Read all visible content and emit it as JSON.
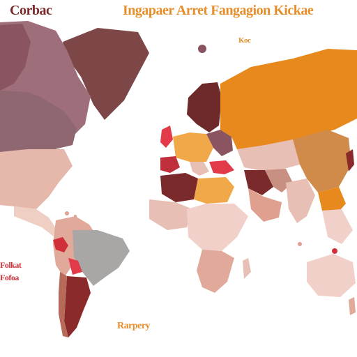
{
  "labels": {
    "top_left": "Corbac",
    "top_center": "Ingapaer Arret Fangagion Kickae",
    "near_russia": "Koc",
    "left_mid_1": "Folkat",
    "left_mid_2": "Fofoa",
    "bottom": "Rarpery"
  },
  "colors": {
    "ocean": "#ffffff",
    "dark_maroon": "#6e2a2a",
    "deep_red": "#8b2a2a",
    "crimson": "#c0303c",
    "bright_red": "#e23a48",
    "plum": "#8a5560",
    "mauve": "#a07080",
    "light_pink": "#e8bfb5",
    "pale_pink": "#f0d0c8",
    "salmon": "#dfa090",
    "orange": "#e8891e",
    "light_orange": "#f0a848",
    "tan": "#d49a68",
    "grey": "#a9a6a6",
    "title_dark": "#7a2a2a",
    "title_orange": "#e58e2c",
    "title_red": "#d0303a"
  }
}
